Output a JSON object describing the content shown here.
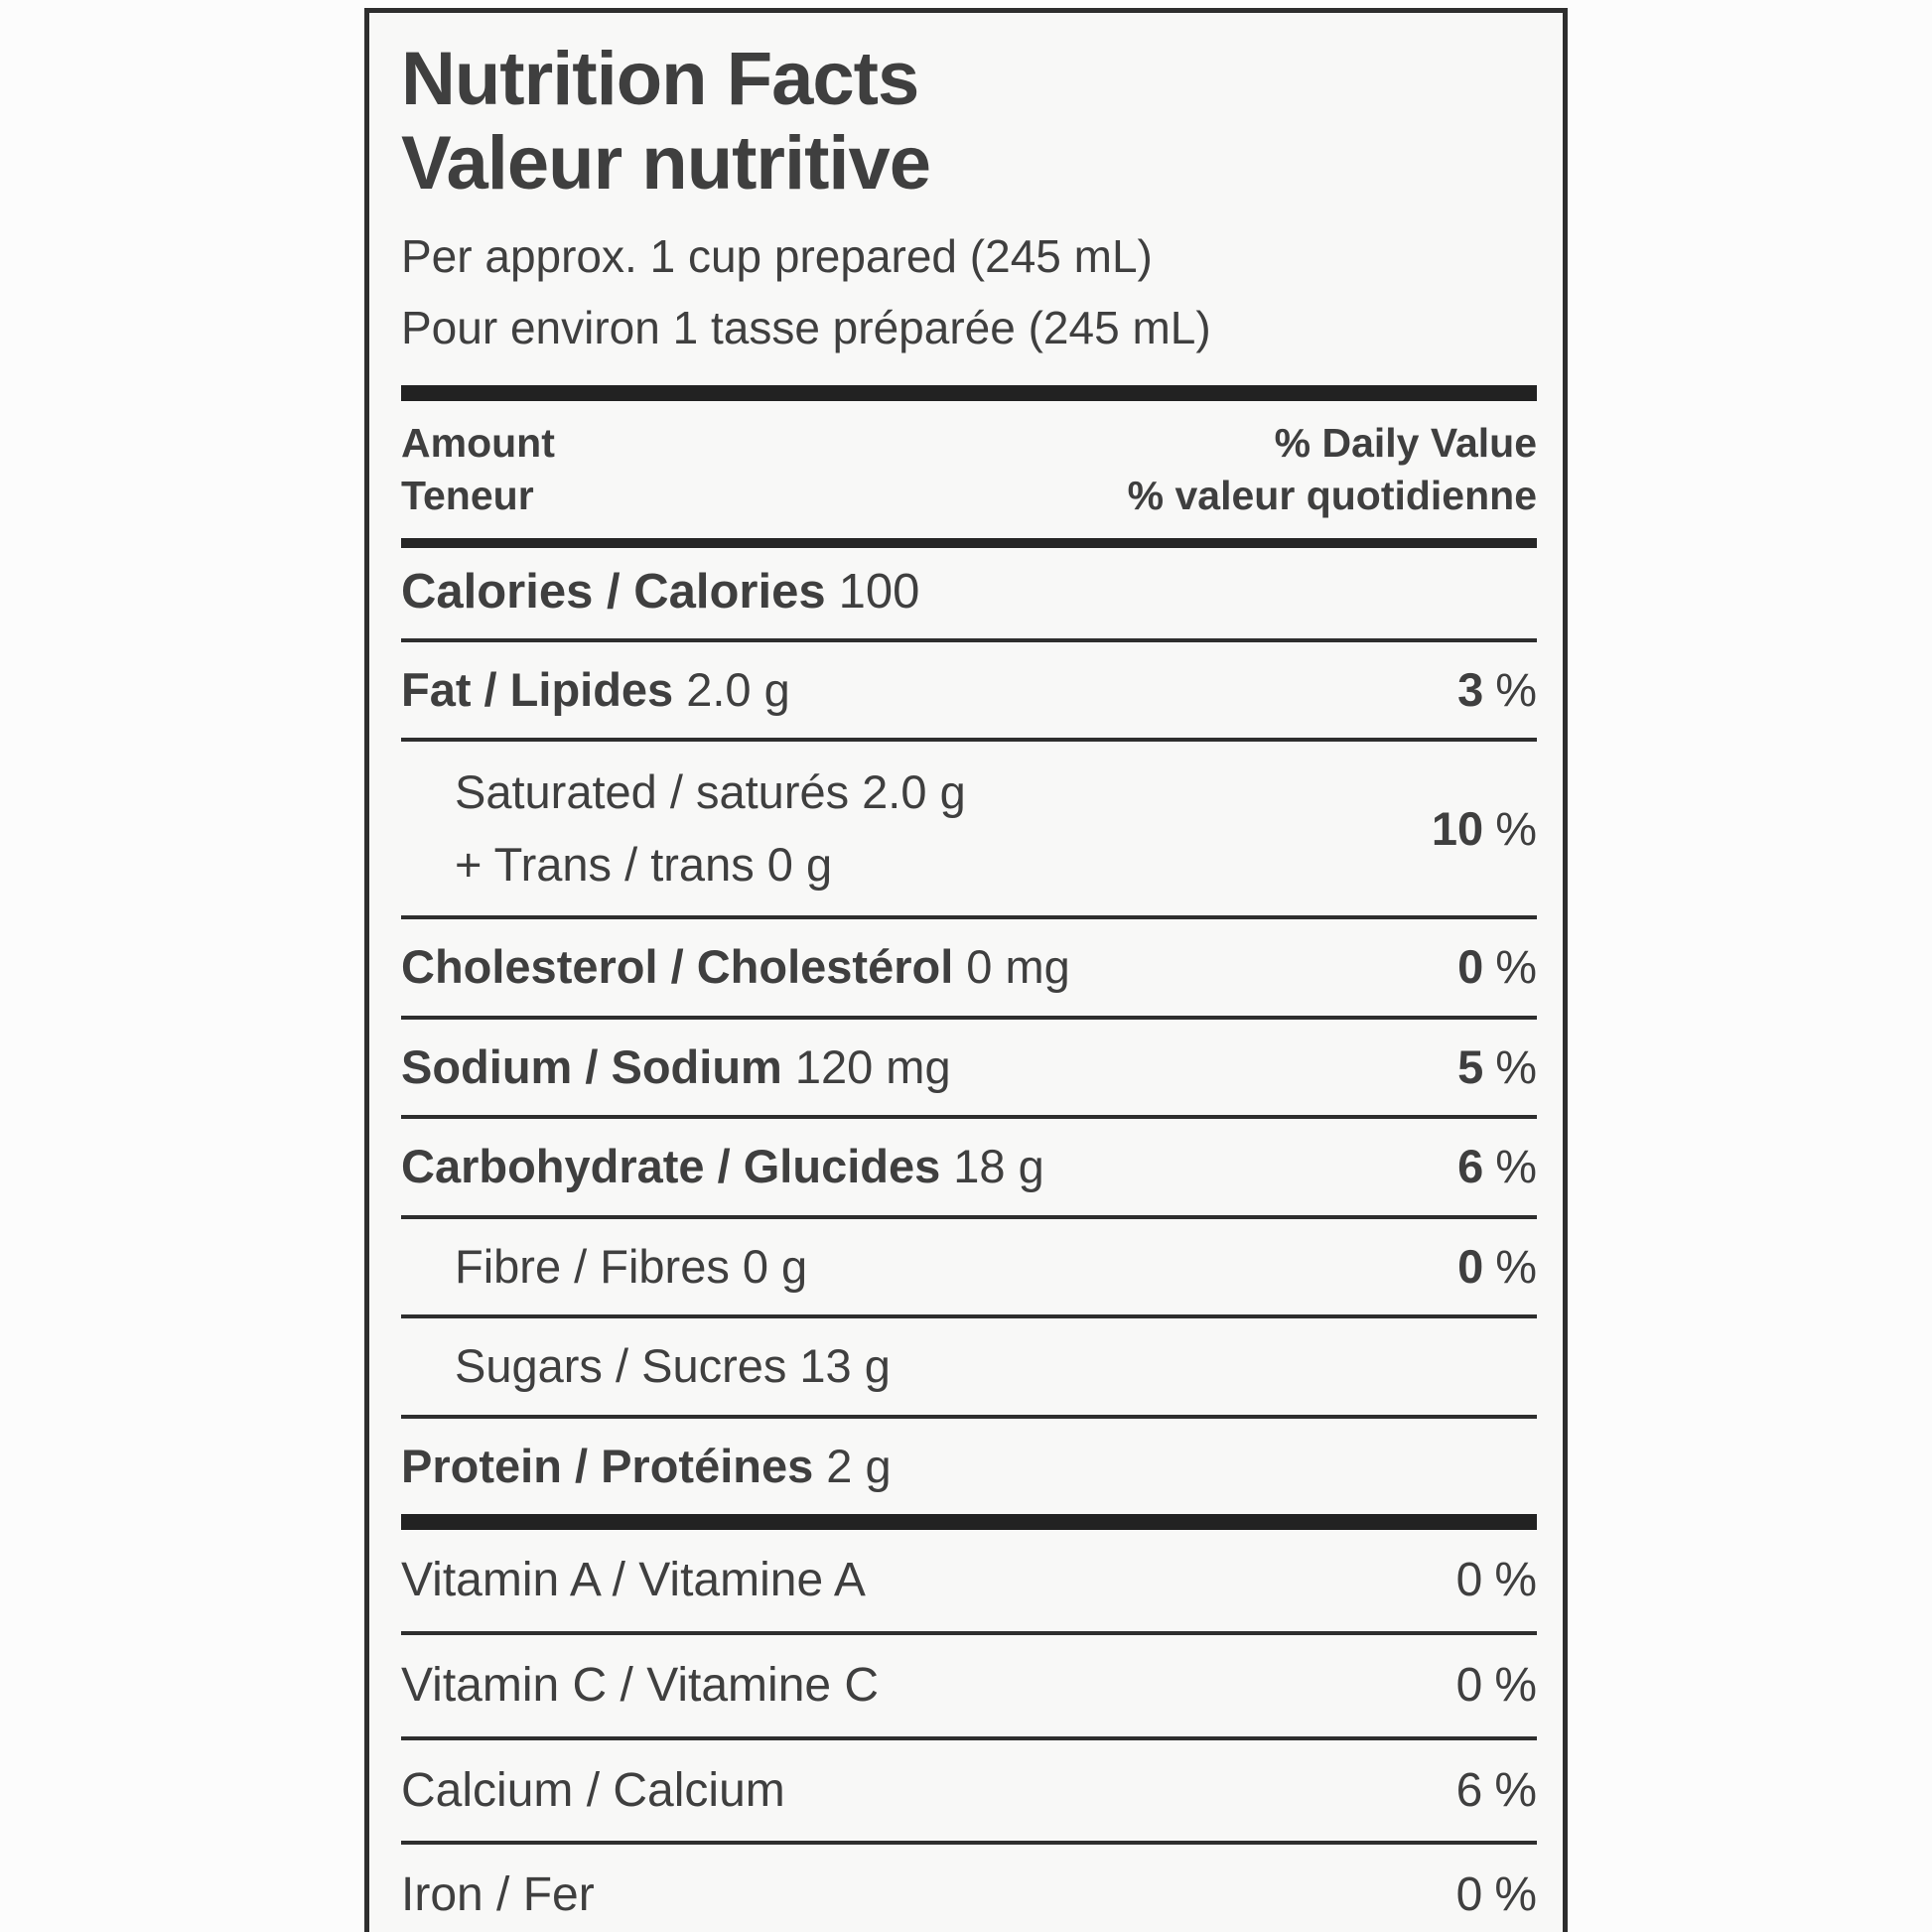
{
  "colors": {
    "page_background": "#fcfcfc",
    "label_background": "#f8f8f7",
    "text": "#3f3f3f",
    "rule": "#2e2e2e",
    "thick_bar": "#222222"
  },
  "header": {
    "title_en": "Nutrition Facts",
    "title_fr": "Valeur nutritive",
    "serving_en": "Per approx. 1 cup prepared (245 mL)",
    "serving_fr": "Pour environ 1 tasse préparée (245 mL)"
  },
  "columns": {
    "amount_en": "Amount",
    "amount_fr": "Teneur",
    "dv_en": "% Daily Value",
    "dv_fr": "% valeur quotidienne"
  },
  "calories_row": {
    "name": "Calories / Calories",
    "amount": "100"
  },
  "nutrient_rows": [
    {
      "name": "Fat / Lipides",
      "amount": "2.0 g",
      "dv_num": "3",
      "dv_unit": "%",
      "bold_name": true,
      "bold_dv": true,
      "indent": false
    },
    {
      "lines": [
        "Saturated / saturés 2.0 g",
        "+ Trans / trans 0 g"
      ],
      "dv_num": "10",
      "dv_unit": "%",
      "bold_dv": true,
      "indent": true
    },
    {
      "name": "Cholesterol / Cholestérol",
      "amount": "0 mg",
      "dv_num": "0",
      "dv_unit": "%",
      "bold_name": true,
      "bold_dv": true,
      "indent": false
    },
    {
      "name": "Sodium / Sodium",
      "amount": "120 mg",
      "dv_num": "5",
      "dv_unit": "%",
      "bold_name": true,
      "bold_dv": true,
      "indent": false
    },
    {
      "name": "Carbohydrate / Glucides",
      "amount": "18 g",
      "dv_num": "6",
      "dv_unit": "%",
      "bold_name": true,
      "bold_dv": true,
      "indent": false
    },
    {
      "name": "Fibre / Fibres",
      "amount": "0 g",
      "dv_num": "0",
      "dv_unit": "%",
      "bold_name": false,
      "bold_dv": true,
      "indent": true
    },
    {
      "name": "Sugars / Sucres",
      "amount": "13 g",
      "bold_name": false,
      "indent": true
    },
    {
      "name": "Protein / Protéines",
      "amount": "2 g",
      "bold_name": true,
      "indent": false
    }
  ],
  "micronutrient_rows": [
    {
      "name": "Vitamin A / Vitamine A",
      "dv_num": "0",
      "dv_unit": "%"
    },
    {
      "name": "Vitamin C / Vitamine C",
      "dv_num": "0",
      "dv_unit": "%"
    },
    {
      "name": "Calcium / Calcium",
      "dv_num": "6",
      "dv_unit": "%"
    },
    {
      "name": "Iron / Fer",
      "dv_num": "0",
      "dv_unit": "%"
    }
  ]
}
